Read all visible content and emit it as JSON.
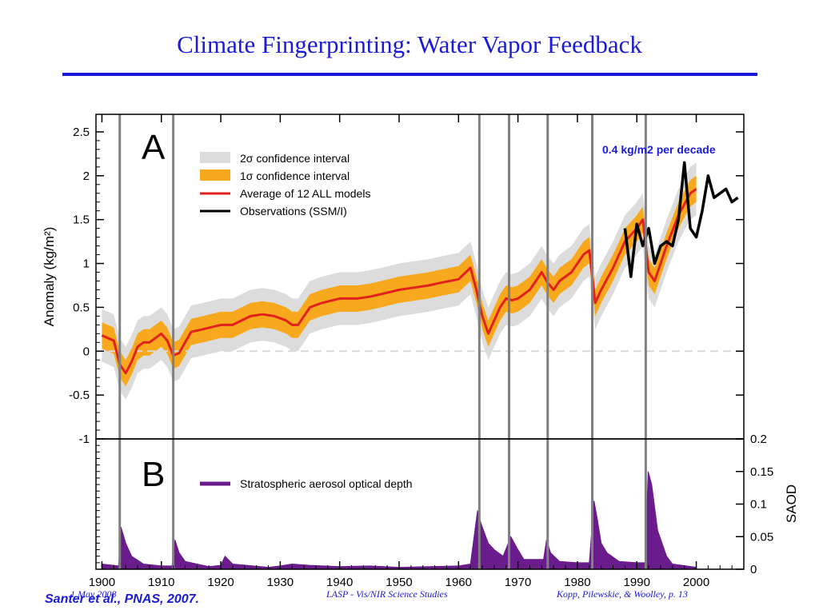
{
  "slide": {
    "title": "Climate Fingerprinting: Water Vapor Feedback",
    "footer_date": "1 May 2008",
    "footer_center": "LASP - Vis/NIR Science Studies",
    "footer_right": "Kopp, Pilewskie, & Woolley, p. 13",
    "citation": "Santer et al., PNAS, 2007.",
    "annotation": "0.4 kg/m2 per decade"
  },
  "colors": {
    "title": "#1a1adb",
    "band_2sigma": "#dcdcdc",
    "band_1sigma": "#f8a81c",
    "model_mean": "#e3211c",
    "observations": "#000000",
    "saod": "#6a1b8c",
    "volcano_lines": "#808080"
  },
  "chart_data": [
    {
      "type": "line",
      "panel_label": "A",
      "ylabel": "Anomaly (kg/m²)",
      "xlim": [
        1899,
        2008
      ],
      "ylim": [
        -1,
        2.7
      ],
      "yticks": [
        -1,
        -0.5,
        0,
        0.5,
        1,
        1.5,
        2,
        2.5
      ],
      "ytick_labels": [
        "-1",
        "-0.5",
        "0",
        "0.5",
        "1",
        "1.5",
        "2",
        "2.5"
      ],
      "legend": [
        "2σ confidence interval",
        "1σ confidence interval",
        "Average of 12 ALL models",
        "Observations (SSM/I)"
      ],
      "legend_position": "top-left",
      "volcano_years": [
        1903,
        1912,
        1963.5,
        1968.5,
        1975,
        1982.5,
        1991.5
      ],
      "series": [
        {
          "name": "Average of 12 ALL models",
          "x": [
            1900,
            1902,
            1903,
            1904,
            1905,
            1906,
            1907,
            1908,
            1910,
            1911,
            1912,
            1913,
            1914,
            1915,
            1917,
            1920,
            1922,
            1925,
            1927,
            1929,
            1931,
            1932,
            1933,
            1935,
            1937,
            1940,
            1943,
            1945,
            1947,
            1950,
            1952,
            1955,
            1957,
            1960,
            1962,
            1963,
            1964,
            1965,
            1966,
            1967,
            1968,
            1969,
            1970,
            1972,
            1974,
            1975,
            1976,
            1977,
            1979,
            1981,
            1982,
            1983,
            1984,
            1986,
            1988,
            1990,
            1991,
            1992,
            1993,
            1995,
            1997,
            1999,
            2000
          ],
          "y": [
            0.18,
            0.12,
            -0.15,
            -0.25,
            -0.12,
            0.05,
            0.1,
            0.1,
            0.2,
            0.12,
            -0.05,
            -0.02,
            0.1,
            0.22,
            0.25,
            0.3,
            0.3,
            0.4,
            0.42,
            0.4,
            0.35,
            0.3,
            0.3,
            0.5,
            0.55,
            0.6,
            0.6,
            0.62,
            0.65,
            0.7,
            0.72,
            0.75,
            0.78,
            0.82,
            0.95,
            0.7,
            0.4,
            0.2,
            0.35,
            0.5,
            0.6,
            0.58,
            0.6,
            0.7,
            0.9,
            0.78,
            0.7,
            0.8,
            0.9,
            1.1,
            1.15,
            0.55,
            0.7,
            0.95,
            1.25,
            1.4,
            1.5,
            0.9,
            0.8,
            1.2,
            1.55,
            1.8,
            1.85
          ],
          "sigma1": 0.15,
          "sigma2": 0.3
        },
        {
          "name": "Observations (SSM/I)",
          "x": [
            1988,
            1989,
            1990,
            1991,
            1992,
            1993,
            1994,
            1995,
            1996,
            1997,
            1998,
            1999,
            2000,
            2001,
            2002,
            2003,
            2004,
            2005,
            2006,
            2007
          ],
          "y": [
            1.4,
            0.85,
            1.45,
            1.2,
            1.4,
            1.0,
            1.2,
            1.25,
            1.2,
            1.5,
            2.15,
            1.4,
            1.3,
            1.6,
            2.0,
            1.75,
            1.8,
            1.85,
            1.7,
            1.75
          ]
        }
      ]
    },
    {
      "type": "area",
      "panel_label": "B",
      "ylabel": "SAOD",
      "xlabel": "",
      "xlim": [
        1899,
        2008
      ],
      "ylim": [
        0,
        0.2
      ],
      "xticks": [
        1900,
        1910,
        1920,
        1930,
        1940,
        1950,
        1960,
        1970,
        1980,
        1990,
        2000
      ],
      "xtick_labels": [
        "1900",
        "1910",
        "1920",
        "1930",
        "1940",
        "1950",
        "1960",
        "1970",
        "1980",
        "1990",
        "2000"
      ],
      "yticks": [
        0,
        0.05,
        0.1,
        0.15,
        0.2
      ],
      "ytick_labels": [
        "0",
        "0.05",
        "0.1",
        "0.15",
        "0.2"
      ],
      "legend": [
        "Stratospheric aerosol optical depth"
      ],
      "series": [
        {
          "name": "Stratospheric aerosol optical depth",
          "x": [
            1900,
            1902,
            1902.8,
            1903.2,
            1904,
            1905,
            1907,
            1910,
            1911.8,
            1912.3,
            1913,
            1914,
            1918,
            1920,
            1920.7,
            1922,
            1928,
            1930,
            1932,
            1935,
            1940,
            1945,
            1950,
            1955,
            1960,
            1962,
            1963.2,
            1963.8,
            1965,
            1966,
            1967.5,
            1968.8,
            1970,
            1971,
            1974.3,
            1974.8,
            1975.5,
            1977,
            1980,
            1982,
            1982.8,
            1983.3,
            1984,
            1985,
            1987,
            1990,
            1991.4,
            1991.9,
            1992.5,
            1993.5,
            1995,
            1996,
            2000
          ],
          "y": [
            0.008,
            0.006,
            0.005,
            0.065,
            0.04,
            0.02,
            0.008,
            0.005,
            0.005,
            0.045,
            0.025,
            0.012,
            0.004,
            0.006,
            0.02,
            0.008,
            0.003,
            0.005,
            0.008,
            0.006,
            0.004,
            0.005,
            0.003,
            0.004,
            0.005,
            0.008,
            0.09,
            0.07,
            0.04,
            0.03,
            0.02,
            0.05,
            0.03,
            0.015,
            0.015,
            0.045,
            0.025,
            0.012,
            0.01,
            0.01,
            0.105,
            0.08,
            0.04,
            0.025,
            0.012,
            0.01,
            0.01,
            0.15,
            0.13,
            0.06,
            0.02,
            0.008,
            0.003
          ]
        }
      ]
    }
  ]
}
